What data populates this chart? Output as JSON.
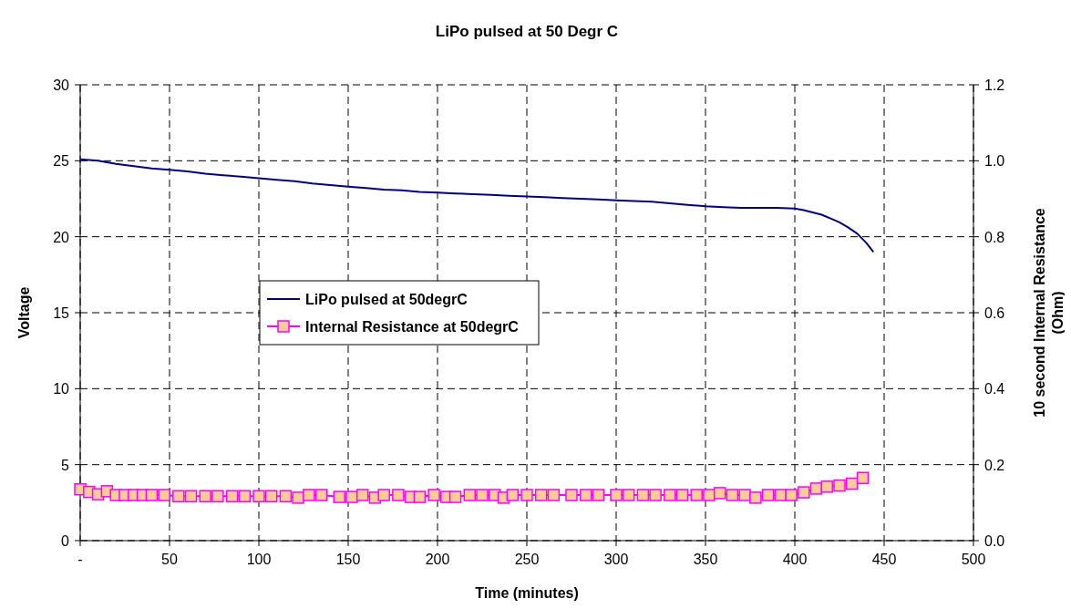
{
  "chart_data": {
    "type": "line",
    "title": "LiPo pulsed at 50 Degr C",
    "xlabel": "Time (minutes)",
    "ylabel": "Voltage",
    "y2label": "10 second Internal Resistance (Ohm)",
    "xlim": [
      0,
      500
    ],
    "xticks": [
      {
        "value": 0,
        "label": "-"
      },
      50,
      100,
      150,
      200,
      250,
      300,
      350,
      400,
      450,
      500
    ],
    "ylim": [
      0,
      30
    ],
    "yticks": [
      0,
      5,
      10,
      15,
      20,
      25,
      30
    ],
    "y2lim": [
      0,
      1.2
    ],
    "y2ticks": [
      {
        "value": 0,
        "label": "0.0"
      },
      {
        "value": 0.2,
        "label": "0.2"
      },
      {
        "value": 0.4,
        "label": "0.4"
      },
      {
        "value": 0.6,
        "label": "0.6"
      },
      {
        "value": 0.8,
        "label": "0.8"
      },
      {
        "value": 1,
        "label": "1.0"
      },
      {
        "value": 1.2,
        "label": "1.2"
      }
    ],
    "grid": true,
    "legend": "left",
    "line_style": "solid",
    "series": [
      {
        "name": "LiPo pulsed at 50degrC",
        "color": "#000080",
        "marker": "none",
        "x": [
          0,
          10,
          20,
          30,
          40,
          50,
          60,
          70,
          80,
          90,
          100,
          110,
          120,
          130,
          140,
          150,
          160,
          170,
          180,
          190,
          200,
          210,
          220,
          230,
          240,
          250,
          260,
          270,
          280,
          290,
          300,
          310,
          320,
          330,
          340,
          350,
          360,
          370,
          380,
          390,
          400,
          405,
          410,
          415,
          420,
          425,
          430,
          435,
          440,
          444
        ],
        "values": [
          25.1,
          25.0,
          24.8,
          24.65,
          24.5,
          24.4,
          24.3,
          24.15,
          24.05,
          23.95,
          23.85,
          23.75,
          23.65,
          23.5,
          23.4,
          23.3,
          23.2,
          23.1,
          23.05,
          22.95,
          22.9,
          22.85,
          22.8,
          22.75,
          22.7,
          22.65,
          22.6,
          22.55,
          22.5,
          22.45,
          22.4,
          22.35,
          22.3,
          22.2,
          22.1,
          22.0,
          21.95,
          21.9,
          21.9,
          21.9,
          21.85,
          21.75,
          21.6,
          21.45,
          21.2,
          20.95,
          20.6,
          20.2,
          19.6,
          19.0
        ]
      },
      {
        "name": "Internal Resistance at 50degrC",
        "color": "#ff00ff",
        "axis": "y2",
        "marker": "square",
        "x": [
          0,
          5,
          10,
          15,
          20,
          25,
          30,
          35,
          40,
          47,
          55,
          62,
          70,
          77,
          85,
          92,
          100,
          107,
          115,
          122,
          128,
          135,
          145,
          152,
          158,
          165,
          170,
          178,
          185,
          190,
          198,
          205,
          210,
          218,
          225,
          232,
          237,
          242,
          250,
          258,
          265,
          275,
          283,
          290,
          300,
          307,
          315,
          322,
          330,
          337,
          345,
          352,
          358,
          365,
          372,
          378,
          385,
          392,
          398,
          405,
          412,
          418,
          425,
          432,
          438
        ],
        "values": [
          0.135,
          0.128,
          0.122,
          0.13,
          0.12,
          0.12,
          0.12,
          0.12,
          0.12,
          0.12,
          0.117,
          0.117,
          0.117,
          0.117,
          0.117,
          0.117,
          0.117,
          0.117,
          0.117,
          0.113,
          0.12,
          0.12,
          0.115,
          0.115,
          0.12,
          0.113,
          0.12,
          0.12,
          0.115,
          0.115,
          0.12,
          0.115,
          0.115,
          0.12,
          0.12,
          0.12,
          0.113,
          0.12,
          0.12,
          0.12,
          0.12,
          0.12,
          0.12,
          0.12,
          0.12,
          0.12,
          0.12,
          0.12,
          0.12,
          0.12,
          0.12,
          0.12,
          0.125,
          0.12,
          0.12,
          0.113,
          0.12,
          0.12,
          0.12,
          0.127,
          0.137,
          0.142,
          0.145,
          0.15,
          0.165
        ]
      }
    ]
  }
}
